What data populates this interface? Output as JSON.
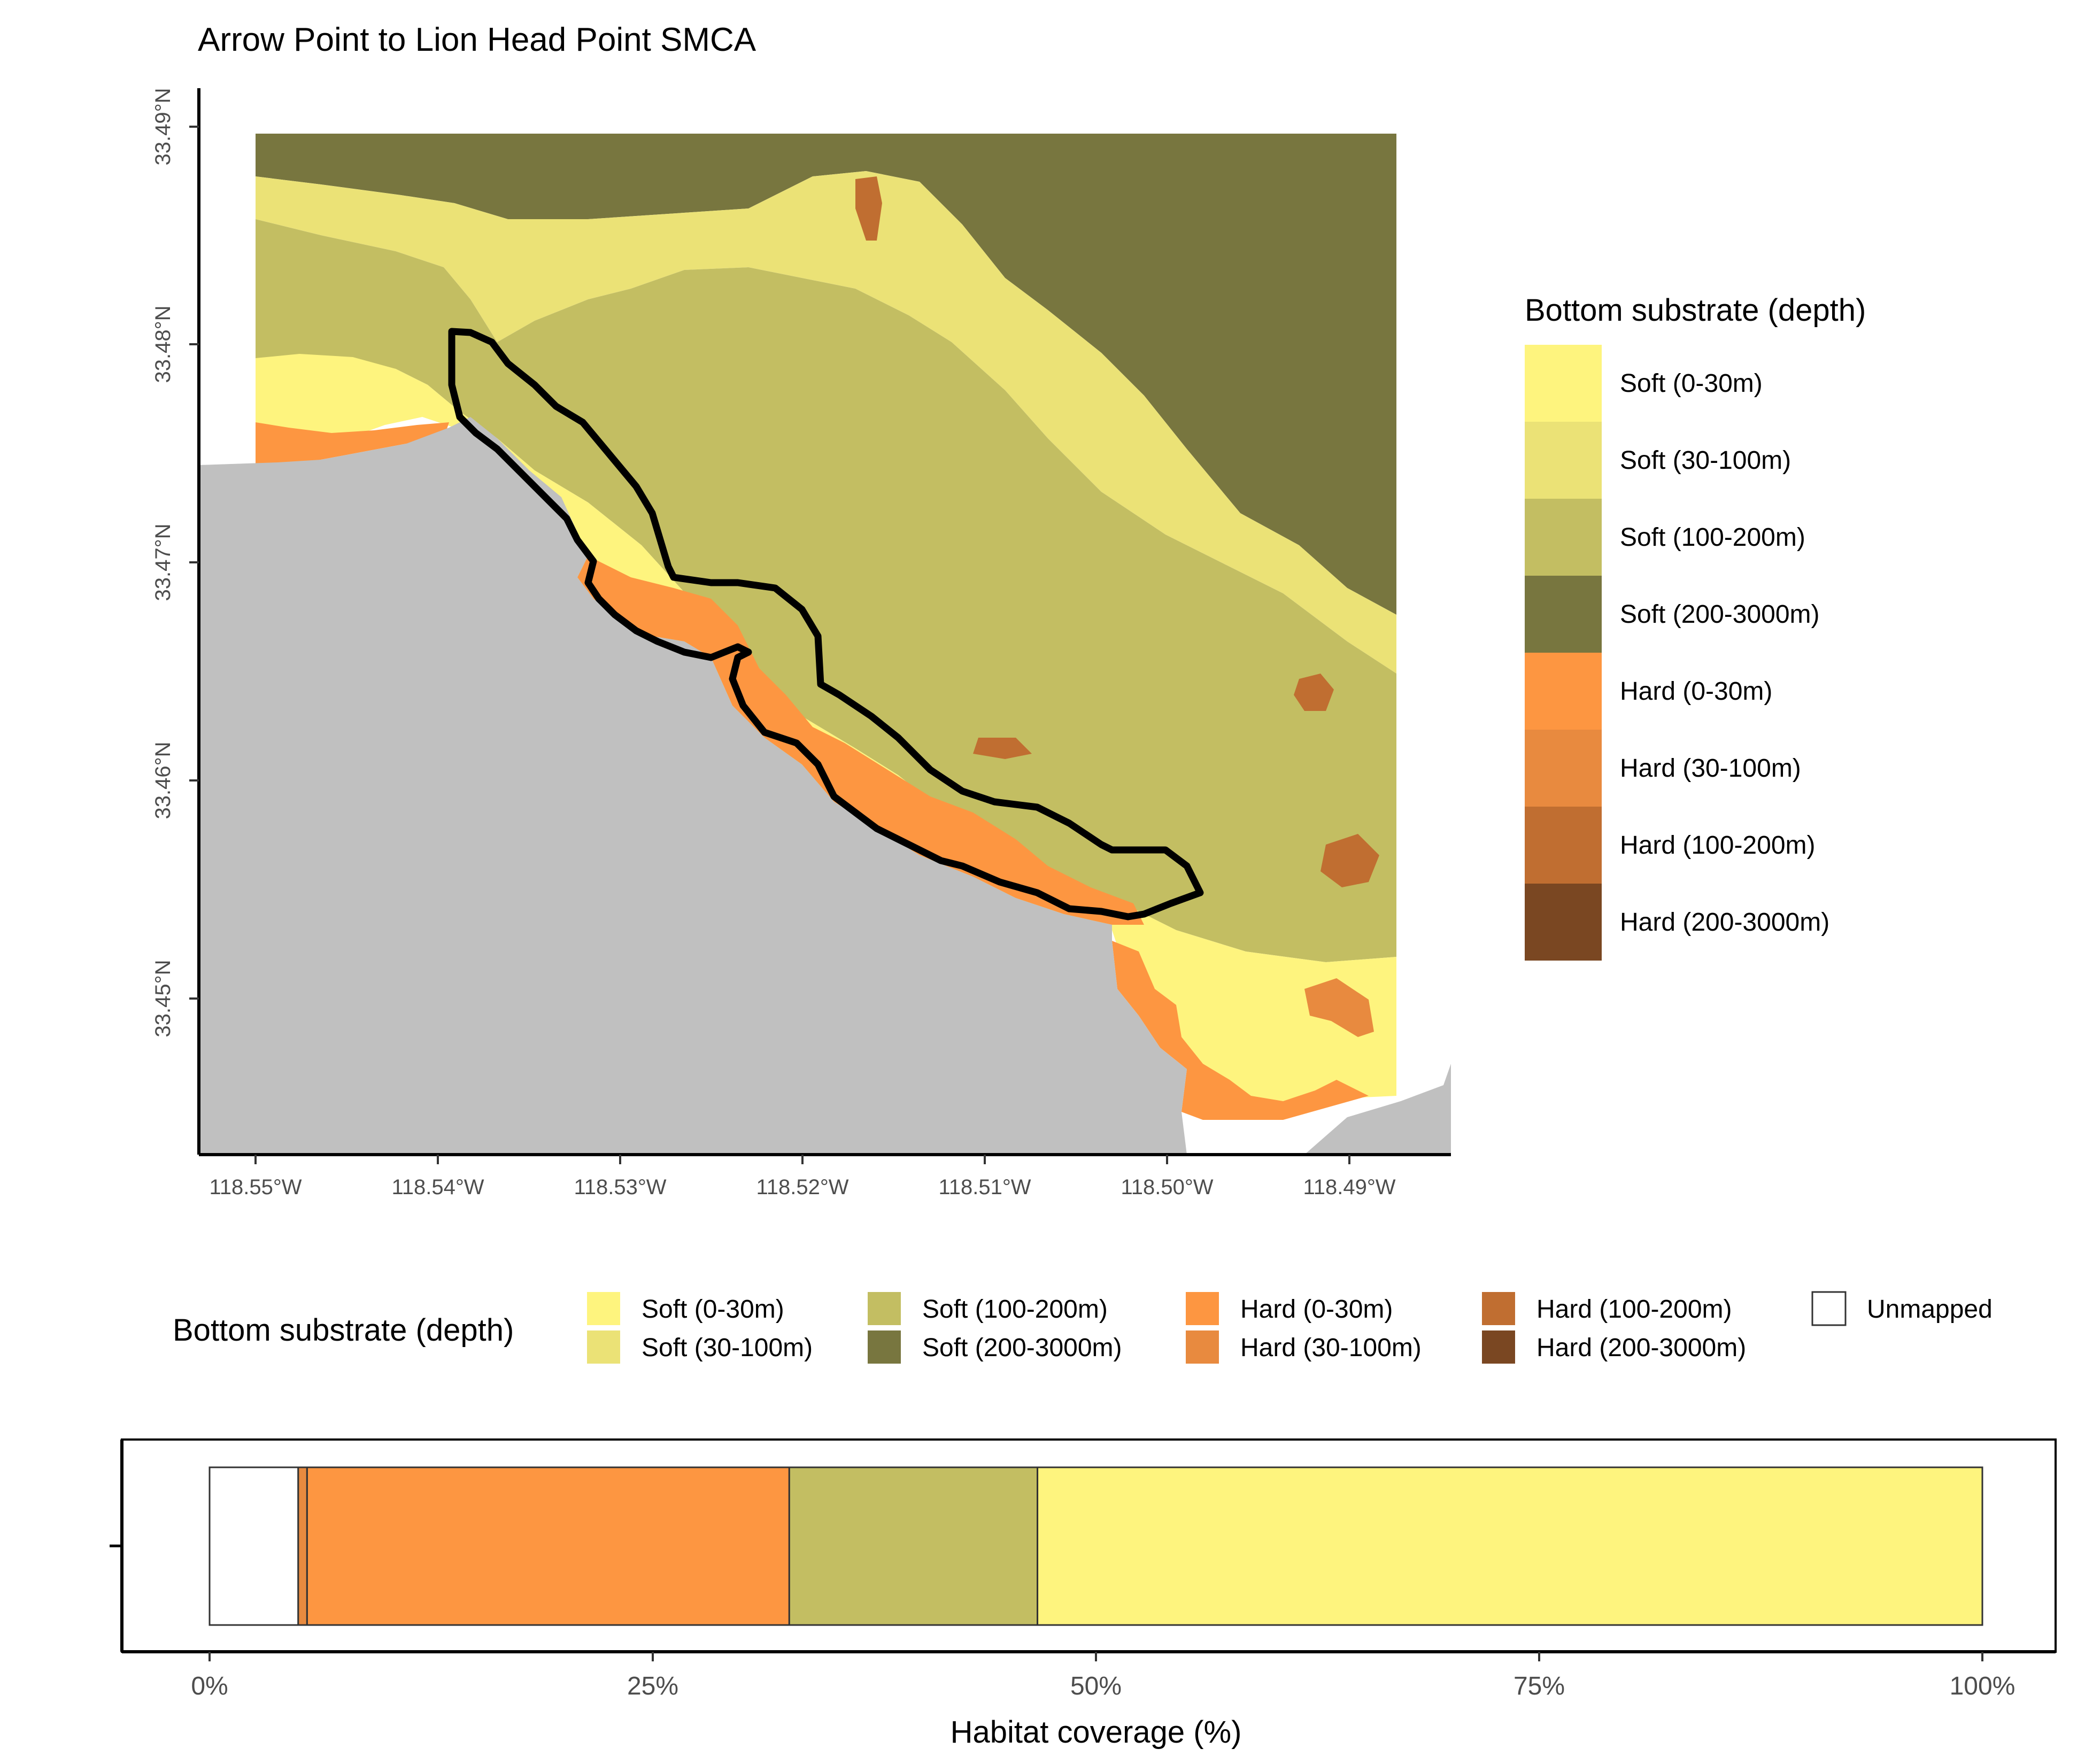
{
  "map": {
    "title": "Arrow Point to Lion Head Point SMCA",
    "lat_ticks": [
      "33.49°N",
      "33.48°N",
      "33.47°N",
      "33.46°N",
      "33.45°N"
    ],
    "lon_ticks": [
      "118.55°W",
      "118.54°W",
      "118.53°W",
      "118.52°W",
      "118.51°W",
      "118.50°W",
      "118.49°W"
    ]
  },
  "right_legend": {
    "title": "Bottom substrate (depth)",
    "items": [
      {
        "label": "Soft (0-30m)",
        "color": "#fef47e"
      },
      {
        "label": "Soft (30-100m)",
        "color": "#ebe276"
      },
      {
        "label": "Soft (100-200m)",
        "color": "#c3be62"
      },
      {
        "label": "Soft (200-3000m)",
        "color": "#78763f"
      },
      {
        "label": "Hard (0-30m)",
        "color": "#fd9641"
      },
      {
        "label": "Hard (30-100m)",
        "color": "#e88a3f"
      },
      {
        "label": "Hard (100-200m)",
        "color": "#c06e31"
      },
      {
        "label": "Hard (200-3000m)",
        "color": "#7a4722"
      }
    ]
  },
  "bottom_legend": {
    "title": "Bottom substrate (depth)",
    "items": [
      {
        "label": "Soft (0-30m)",
        "color": "#fef47e"
      },
      {
        "label": "Soft (30-100m)",
        "color": "#ebe276"
      },
      {
        "label": "Soft (100-200m)",
        "color": "#c3be62"
      },
      {
        "label": "Soft (200-3000m)",
        "color": "#78763f"
      },
      {
        "label": "Hard (0-30m)",
        "color": "#fd9641"
      },
      {
        "label": "Hard (30-100m)",
        "color": "#e88a3f"
      },
      {
        "label": "Hard (100-200m)",
        "color": "#c06e31"
      },
      {
        "label": "Hard (200-3000m)",
        "color": "#7a4722"
      },
      {
        "label": "Unmapped",
        "color": "#ffffff"
      }
    ]
  },
  "chart_data": {
    "type": "bar",
    "orientation": "horizontal-stacked",
    "xlabel": "Habitat coverage (%)",
    "x_ticks": [
      "0%",
      "25%",
      "50%",
      "75%",
      "100%"
    ],
    "xlim": [
      0,
      100
    ],
    "series": [
      {
        "name": "Unmapped",
        "value": 5.0,
        "color": "#ffffff"
      },
      {
        "name": "Hard (30-100m)",
        "value": 0.5,
        "color": "#e88a3f"
      },
      {
        "name": "Hard (0-30m)",
        "value": 27.2,
        "color": "#fd9641"
      },
      {
        "name": "Soft (100-200m)",
        "value": 14.0,
        "color": "#c3be62"
      },
      {
        "name": "Soft (0-30m)",
        "value": 53.3,
        "color": "#fef47e"
      }
    ]
  }
}
